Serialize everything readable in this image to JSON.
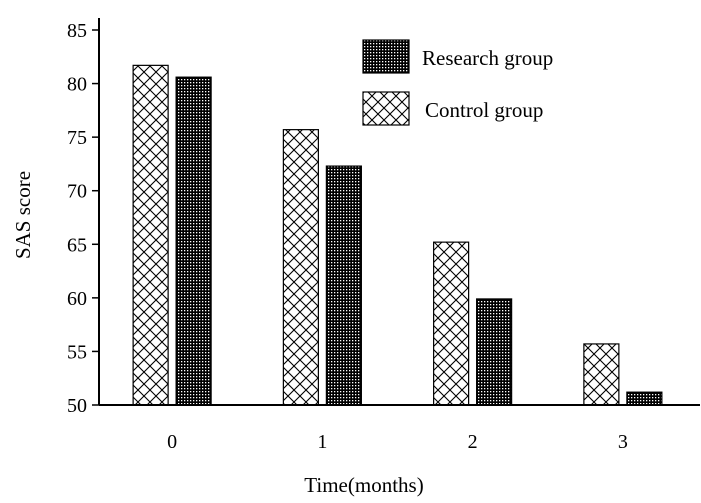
{
  "chart_data": {
    "type": "bar",
    "title": "",
    "xlabel": "Time(months)",
    "ylabel": "SAS score",
    "categories": [
      "0",
      "1",
      "2",
      "3"
    ],
    "ylim": [
      50,
      85
    ],
    "yticks": [
      50,
      55,
      60,
      65,
      70,
      75,
      80,
      85
    ],
    "grid": false,
    "legend": "top-right",
    "series": [
      {
        "name": "Control group",
        "values": [
          81.7,
          75.7,
          65.2,
          55.7
        ],
        "pattern": "crosshatch"
      },
      {
        "name": "Research group",
        "values": [
          80.6,
          72.3,
          59.9,
          51.2
        ],
        "pattern": "dense-dots"
      }
    ]
  }
}
